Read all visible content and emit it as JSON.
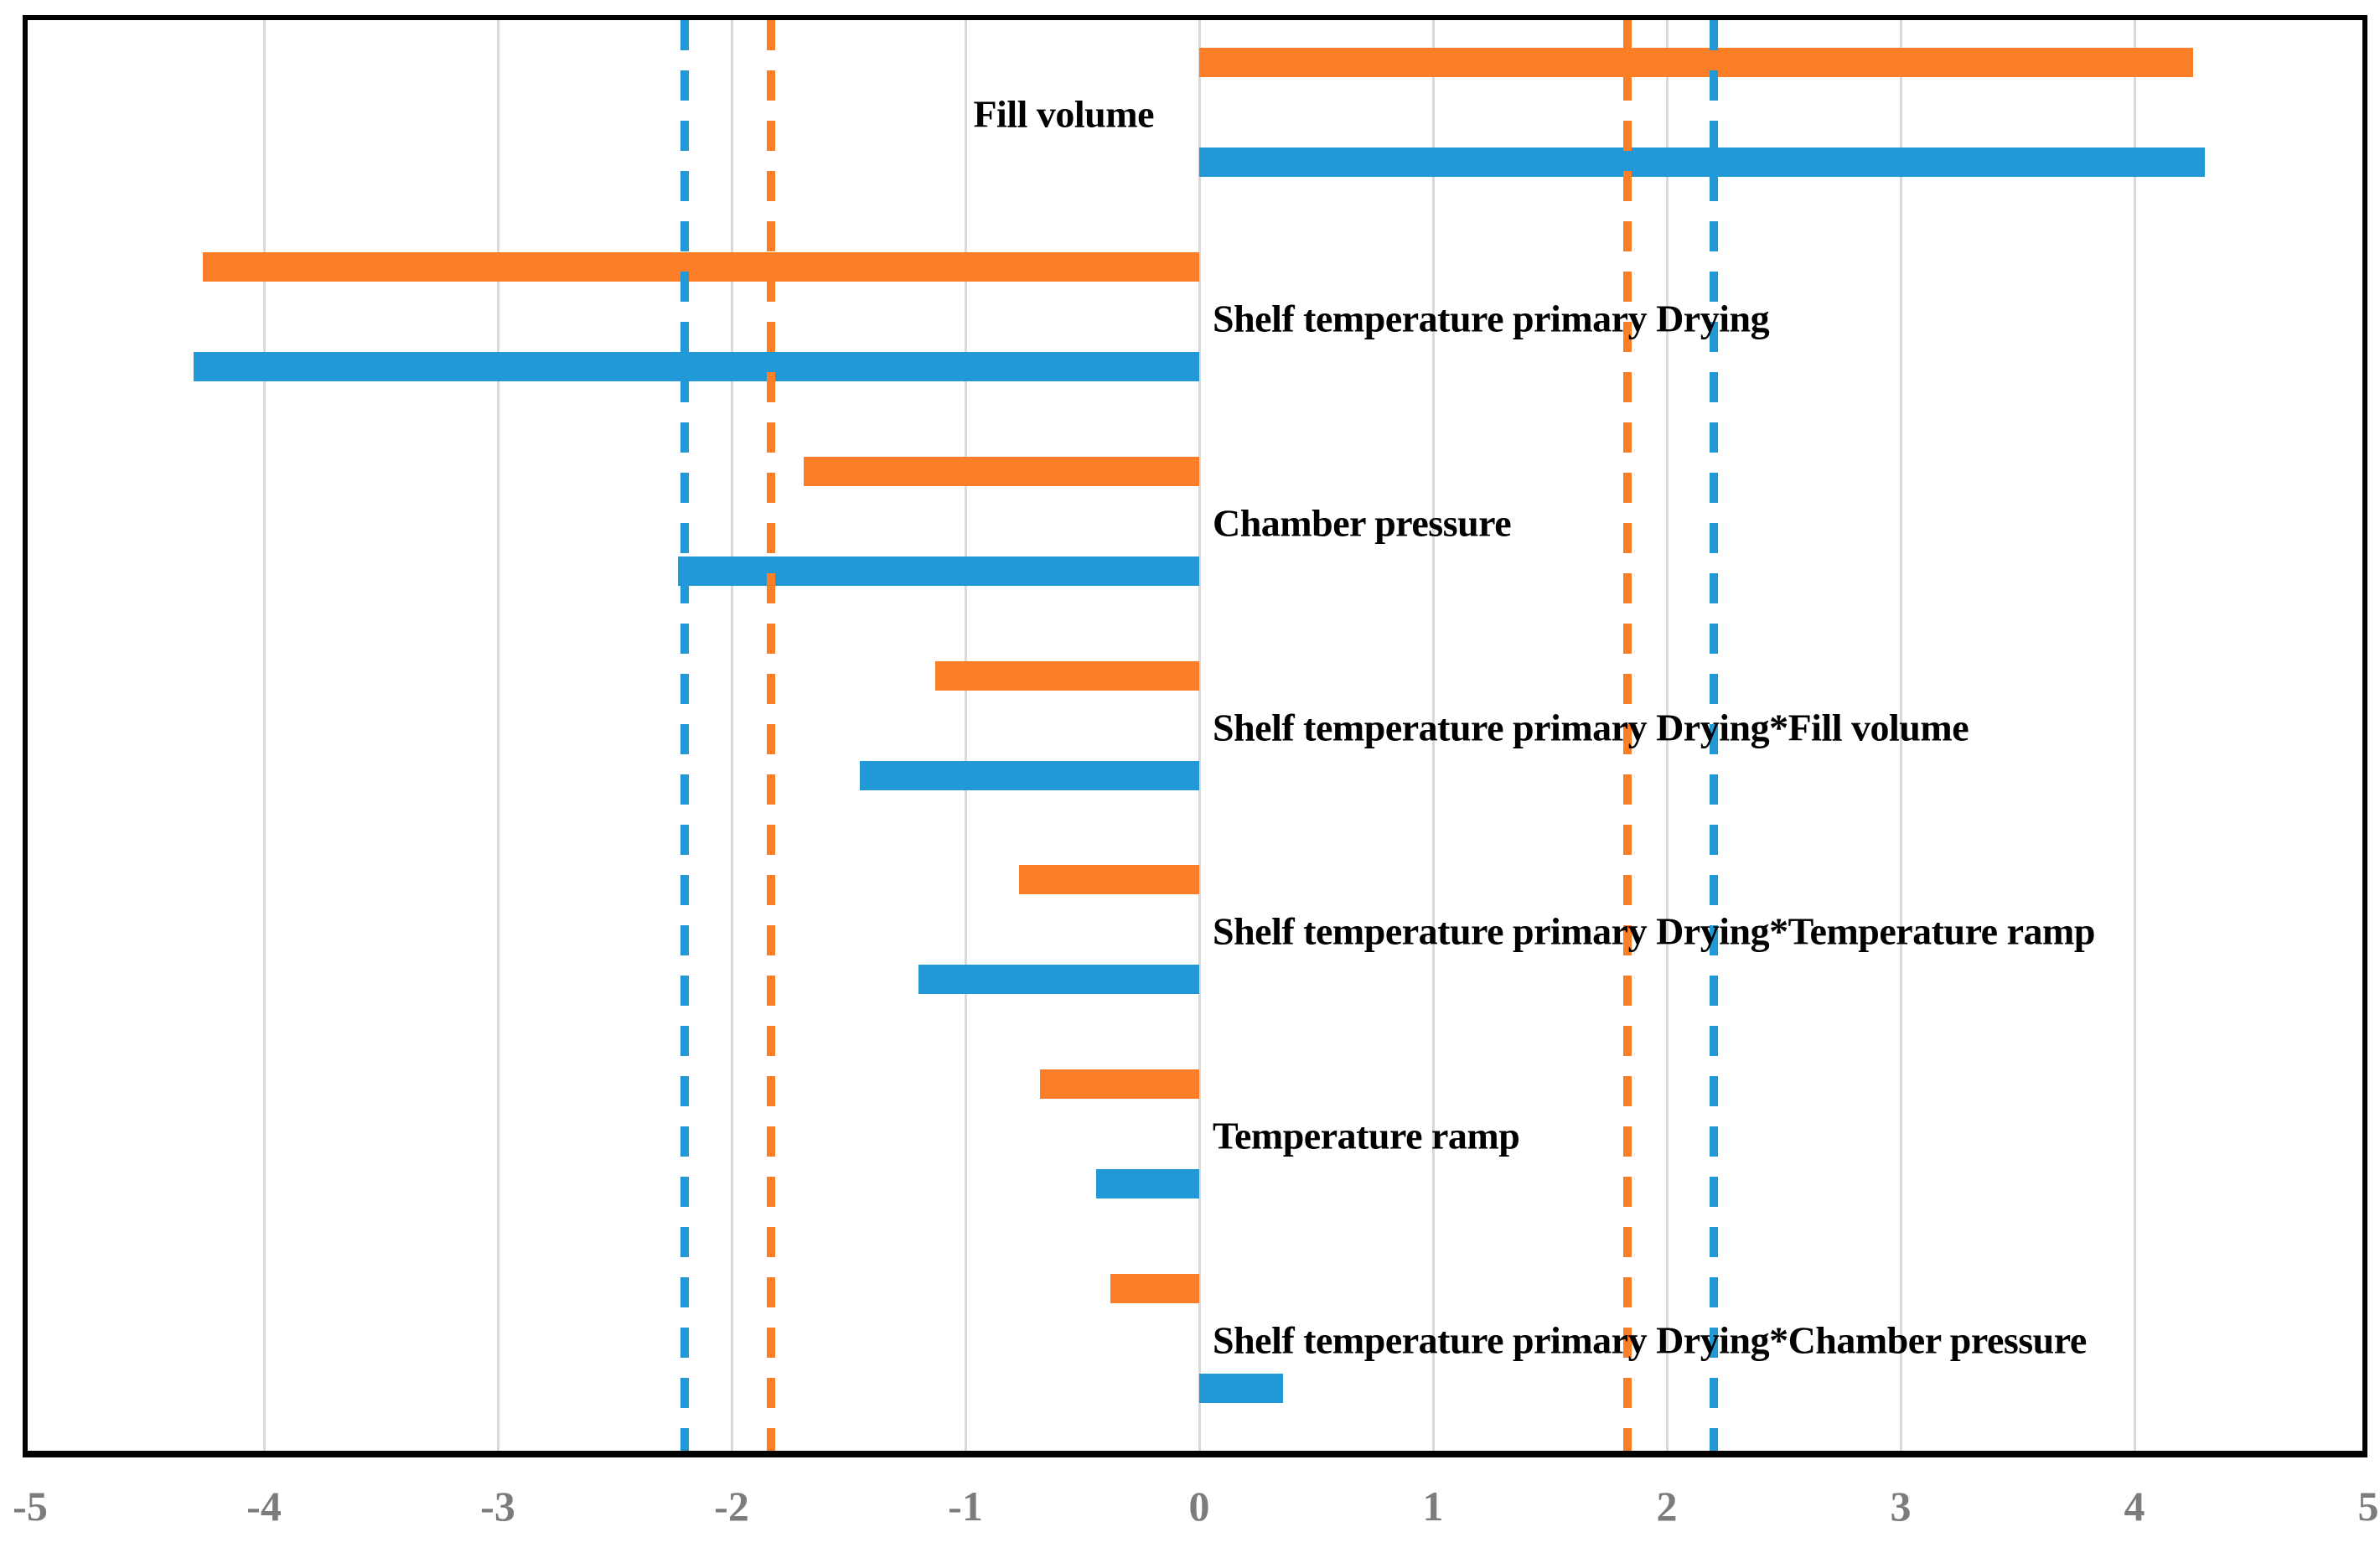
{
  "chart_data": {
    "type": "bar",
    "orientation": "horizontal",
    "title": "",
    "legend": "none",
    "categories": [
      "Fill volume",
      "Shelf temperature primary Drying",
      "Chamber pressure",
      "Shelf temperature primary Drying*Fill volume",
      "Shelf temperature primary Drying*Temperature ramp",
      "Temperature ramp",
      "Shelf temperature primary Drying*Chamber pressure"
    ],
    "series": [
      {
        "name": "orange",
        "color": "#FC7E27",
        "values": [
          4.25,
          -4.26,
          -1.69,
          -1.13,
          -0.77,
          -0.68,
          -0.38
        ]
      },
      {
        "name": "blue",
        "color": "#2099D6",
        "values": [
          4.3,
          -4.3,
          -2.23,
          -1.45,
          -1.2,
          -0.44,
          0.36
        ]
      }
    ],
    "reference_lines": [
      {
        "name": "orange-threshold",
        "color": "#FC7E27",
        "style": "dashed",
        "values": [
          -1.83,
          1.83
        ]
      },
      {
        "name": "blue-threshold",
        "color": "#2099D6",
        "style": "dashed",
        "values": [
          -2.2,
          2.2
        ]
      }
    ],
    "x_axis": {
      "min": -5,
      "max": 5,
      "tick_step": 1,
      "tick_labels": [
        "-5",
        "-4",
        "-3",
        "-2",
        "-1",
        "0",
        "1",
        "2",
        "3",
        "4",
        "5"
      ],
      "tick_color": "#7C7C7C"
    },
    "grid": true,
    "gridline_color": "#D9D9D9",
    "plot_border_color": "#000000",
    "xlabel": "",
    "ylabel": ""
  }
}
